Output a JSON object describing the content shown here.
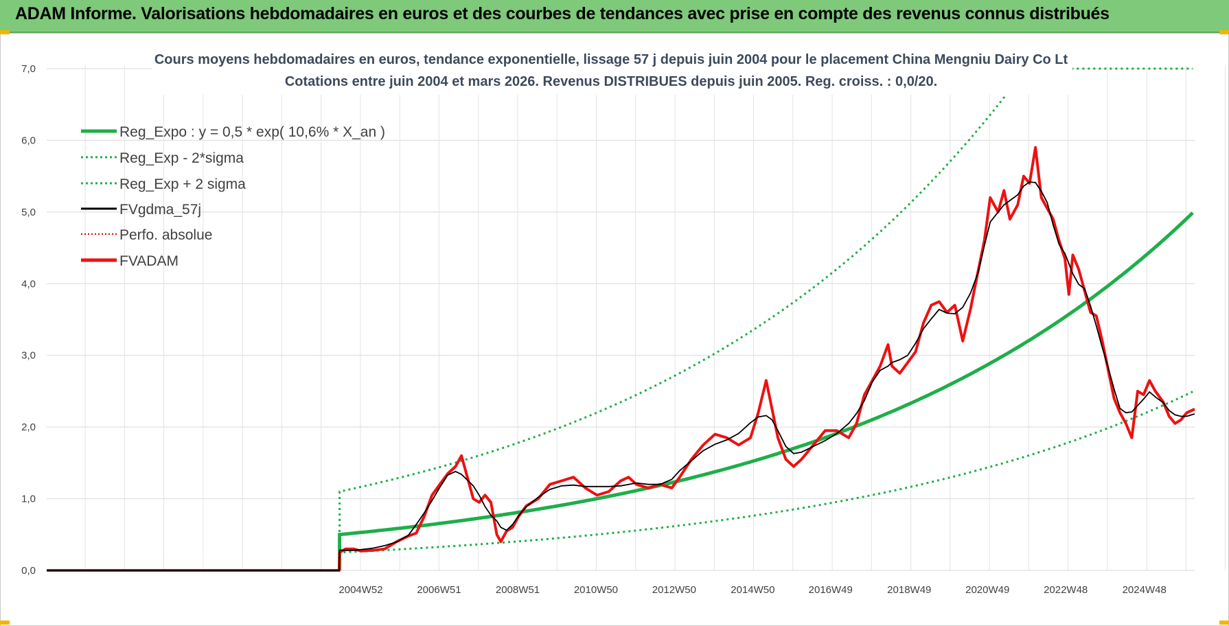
{
  "header": {
    "title": "ADAM Informe. Valorisations hebdomadaires en euros et des courbes de tendances avec prise en compte des revenus connus distribués"
  },
  "chart_data": {
    "type": "line",
    "title_line1": "Cours moyens hebdomadaires en euros, tendance exponentielle, lissage 57 j depuis juin 2004 pour le placement China Mengniu Dairy Co Lt",
    "title_line2": "Cotations entre juin 2004 et mars 2026. Revenus DISTRIBUES depuis juin 2005. Reg. croiss. : 0,0/20.",
    "ylim": [
      0,
      7
    ],
    "y_ticks": [
      "0,0",
      "1,0",
      "2,0",
      "3,0",
      "4,0",
      "5,0",
      "6,0",
      "7,0"
    ],
    "x_range_years": [
      1997,
      2026.2
    ],
    "x_ticks": [
      {
        "label": "2004W52",
        "t": 2004.99
      },
      {
        "label": "2006W51",
        "t": 2006.98
      },
      {
        "label": "2008W51",
        "t": 2008.98
      },
      {
        "label": "2010W50",
        "t": 2010.97
      },
      {
        "label": "2012W50",
        "t": 2012.96
      },
      {
        "label": "2014W50",
        "t": 2014.96
      },
      {
        "label": "2016W49",
        "t": 2016.94
      },
      {
        "label": "2018W49",
        "t": 2018.94
      },
      {
        "label": "2020W49",
        "t": 2020.93
      },
      {
        "label": "2022W48",
        "t": 2022.92
      },
      {
        "label": "2024W48",
        "t": 2024.92
      }
    ],
    "grid": true,
    "legend_position": "top-left",
    "regression": {
      "start": 2004.45,
      "a": 0.5,
      "rate": 0.106,
      "sigma_low_factor": 0.5,
      "sigma_high_factor": 2.2
    },
    "series": [
      {
        "name": "Reg_Expo : y = 0,5 * exp( 10,6% *  X_an )",
        "color": "#1fae4a",
        "style": "solid-thick"
      },
      {
        "name": "Reg_Exp - 2*sigma",
        "color": "#1fae4a",
        "style": "dotted"
      },
      {
        "name": "Reg_Exp + 2 sigma",
        "color": "#1fae4a",
        "style": "dotted"
      },
      {
        "name": "FVgdma_57j",
        "color": "#000000",
        "style": "solid"
      },
      {
        "name": "Perfo. absolue",
        "color": "#e00000",
        "style": "dotted-thin"
      },
      {
        "name": "FVADAM",
        "color": "#ee1111",
        "style": "solid-thick",
        "points": [
          [
            1997.0,
            0
          ],
          [
            2004.44,
            0
          ],
          [
            2004.45,
            0.25
          ],
          [
            2004.6,
            0.3
          ],
          [
            2004.8,
            0.3
          ],
          [
            2005.0,
            0.27
          ],
          [
            2005.3,
            0.28
          ],
          [
            2005.6,
            0.3
          ],
          [
            2005.9,
            0.4
          ],
          [
            2006.2,
            0.48
          ],
          [
            2006.4,
            0.52
          ],
          [
            2006.6,
            0.75
          ],
          [
            2006.8,
            1.05
          ],
          [
            2007.0,
            1.2
          ],
          [
            2007.2,
            1.35
          ],
          [
            2007.4,
            1.45
          ],
          [
            2007.55,
            1.6
          ],
          [
            2007.7,
            1.3
          ],
          [
            2007.85,
            1.0
          ],
          [
            2008.0,
            0.95
          ],
          [
            2008.15,
            1.05
          ],
          [
            2008.3,
            0.95
          ],
          [
            2008.45,
            0.5
          ],
          [
            2008.55,
            0.4
          ],
          [
            2008.7,
            0.55
          ],
          [
            2008.85,
            0.6
          ],
          [
            2009.0,
            0.75
          ],
          [
            2009.2,
            0.9
          ],
          [
            2009.5,
            1.0
          ],
          [
            2009.8,
            1.2
          ],
          [
            2010.1,
            1.25
          ],
          [
            2010.4,
            1.3
          ],
          [
            2010.7,
            1.15
          ],
          [
            2011.0,
            1.05
          ],
          [
            2011.3,
            1.1
          ],
          [
            2011.6,
            1.25
          ],
          [
            2011.8,
            1.3
          ],
          [
            2012.0,
            1.2
          ],
          [
            2012.3,
            1.15
          ],
          [
            2012.6,
            1.2
          ],
          [
            2012.9,
            1.15
          ],
          [
            2013.1,
            1.3
          ],
          [
            2013.4,
            1.55
          ],
          [
            2013.7,
            1.75
          ],
          [
            2014.0,
            1.9
          ],
          [
            2014.3,
            1.85
          ],
          [
            2014.6,
            1.75
          ],
          [
            2014.9,
            1.85
          ],
          [
            2015.1,
            2.2
          ],
          [
            2015.3,
            2.65
          ],
          [
            2015.45,
            2.25
          ],
          [
            2015.6,
            1.85
          ],
          [
            2015.8,
            1.55
          ],
          [
            2016.0,
            1.45
          ],
          [
            2016.2,
            1.55
          ],
          [
            2016.5,
            1.75
          ],
          [
            2016.8,
            1.95
          ],
          [
            2017.1,
            1.95
          ],
          [
            2017.4,
            1.85
          ],
          [
            2017.6,
            2.05
          ],
          [
            2017.8,
            2.45
          ],
          [
            2018.0,
            2.65
          ],
          [
            2018.2,
            2.85
          ],
          [
            2018.4,
            3.15
          ],
          [
            2018.5,
            2.85
          ],
          [
            2018.7,
            2.75
          ],
          [
            2018.9,
            2.9
          ],
          [
            2019.1,
            3.05
          ],
          [
            2019.3,
            3.45
          ],
          [
            2019.5,
            3.7
          ],
          [
            2019.7,
            3.75
          ],
          [
            2019.9,
            3.6
          ],
          [
            2020.1,
            3.7
          ],
          [
            2020.3,
            3.2
          ],
          [
            2020.5,
            3.65
          ],
          [
            2020.7,
            4.2
          ],
          [
            2020.85,
            4.6
          ],
          [
            2021.0,
            5.2
          ],
          [
            2021.2,
            5.0
          ],
          [
            2021.35,
            5.3
          ],
          [
            2021.5,
            4.9
          ],
          [
            2021.7,
            5.1
          ],
          [
            2021.85,
            5.5
          ],
          [
            2022.0,
            5.4
          ],
          [
            2022.15,
            5.9
          ],
          [
            2022.3,
            5.2
          ],
          [
            2022.45,
            5.05
          ],
          [
            2022.6,
            4.9
          ],
          [
            2022.75,
            4.6
          ],
          [
            2022.9,
            4.35
          ],
          [
            2023.0,
            3.85
          ],
          [
            2023.1,
            4.4
          ],
          [
            2023.25,
            4.2
          ],
          [
            2023.4,
            3.9
          ],
          [
            2023.55,
            3.6
          ],
          [
            2023.7,
            3.55
          ],
          [
            2023.85,
            3.2
          ],
          [
            2024.0,
            2.8
          ],
          [
            2024.15,
            2.4
          ],
          [
            2024.3,
            2.2
          ],
          [
            2024.45,
            2.05
          ],
          [
            2024.6,
            1.85
          ],
          [
            2024.75,
            2.5
          ],
          [
            2024.9,
            2.45
          ],
          [
            2025.05,
            2.65
          ],
          [
            2025.2,
            2.5
          ],
          [
            2025.4,
            2.35
          ],
          [
            2025.55,
            2.15
          ],
          [
            2025.7,
            2.05
          ],
          [
            2025.85,
            2.1
          ],
          [
            2026.0,
            2.2
          ],
          [
            2026.2,
            2.25
          ]
        ]
      }
    ]
  }
}
